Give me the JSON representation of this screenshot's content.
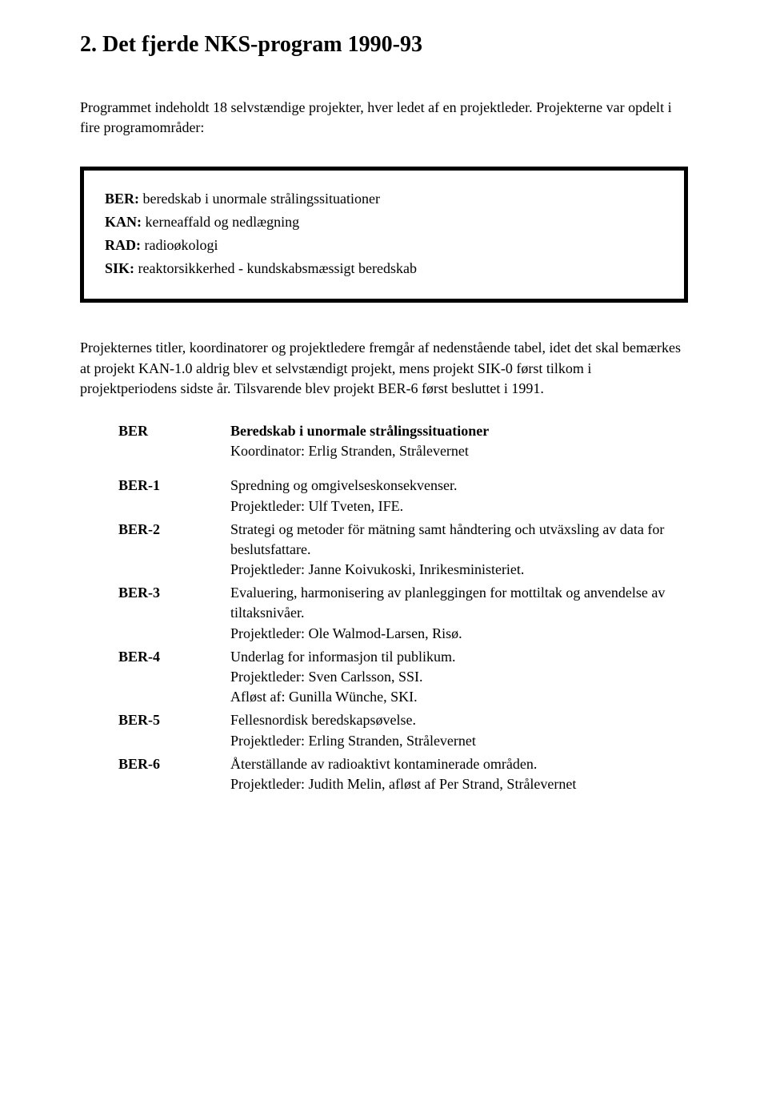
{
  "heading": "2. Det fjerde NKS-program 1990-93",
  "intro1": "Programmet indeholdt 18 selvstændige projekter, hver ledet af en projektleder. Projekterne var opdelt i fire programområder:",
  "defs": [
    {
      "code": "BER:",
      "text": " beredskab i unormale strålingssituationer"
    },
    {
      "code": "KAN:",
      "text": " kerneaffald og nedlægning"
    },
    {
      "code": "RAD:",
      "text": " radioøkologi"
    },
    {
      "code": "SIK:",
      "text": " reaktorsikkerhed - kundskabsmæssigt beredskab"
    }
  ],
  "body1": "Projekternes titler, koordinatorer og projektledere fremgår af nedenstående tabel, idet det skal bemærkes at projekt KAN-1.0 aldrig blev et selvstændigt projekt, mens projekt SIK-0 først tilkom i projektperiodens sidste år. Tilsvarende blev projekt BER-6 først besluttet i 1991.",
  "entries": [
    {
      "code": "BER",
      "title": "Beredskab i unormale strålingssituationer",
      "lines": [
        "Koordinator: Erlig Stranden, Strålevernet"
      ]
    },
    {
      "code": "BER-1",
      "lines": [
        "Spredning og omgivelseskonsekvenser.",
        "Projektleder: Ulf Tveten, IFE."
      ]
    },
    {
      "code": "BER-2",
      "lines": [
        "Strategi og metoder för mätning samt håndtering och utväxsling av data for beslutsfattare.",
        "Projektleder: Janne Koivukoski, Inrikesministeriet."
      ]
    },
    {
      "code": "BER-3",
      "lines": [
        "Evaluering, harmonisering av planleggingen for mottiltak og anvendelse av tiltaksnivåer.",
        "Projektleder: Ole Walmod-Larsen, Risø."
      ]
    },
    {
      "code": "BER-4",
      "lines": [
        "Underlag for informasjon til publikum.",
        "Projektleder: Sven Carlsson, SSI.",
        "Afløst af: Gunilla Wünche, SKI."
      ]
    },
    {
      "code": "BER-5",
      "lines": [
        "Fellesnordisk beredskapsøvelse.",
        "Projektleder: Erling Stranden, Strålevernet"
      ]
    },
    {
      "code": "BER-6",
      "lines": [
        "Återställande av radioaktivt kontaminerade områden.",
        "Projektleder: Judith Melin, afløst af Per Strand, Strålevernet"
      ]
    }
  ]
}
